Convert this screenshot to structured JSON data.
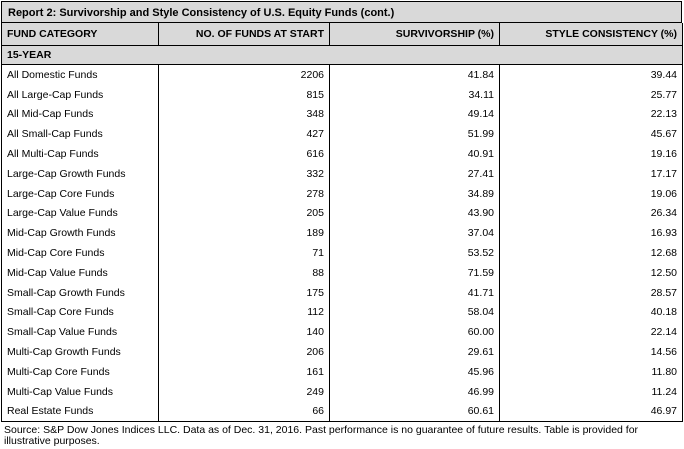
{
  "report": {
    "title": "Report 2: Survivorship and Style Consistency of U.S. Equity Funds (cont.)"
  },
  "table": {
    "headers": [
      "FUND CATEGORY",
      "NO. OF FUNDS AT START",
      "SURVIVORSHIP (%)",
      "STYLE CONSISTENCY (%)"
    ],
    "section": "15-YEAR",
    "rows": [
      [
        "All Domestic Funds",
        "2206",
        "41.84",
        "39.44"
      ],
      [
        "All Large-Cap Funds",
        "815",
        "34.11",
        "25.77"
      ],
      [
        "All Mid-Cap Funds",
        "348",
        "49.14",
        "22.13"
      ],
      [
        "All Small-Cap Funds",
        "427",
        "51.99",
        "45.67"
      ],
      [
        "All Multi-Cap Funds",
        "616",
        "40.91",
        "19.16"
      ],
      [
        "Large-Cap Growth Funds",
        "332",
        "27.41",
        "17.17"
      ],
      [
        "Large-Cap Core Funds",
        "278",
        "34.89",
        "19.06"
      ],
      [
        "Large-Cap Value Funds",
        "205",
        "43.90",
        "26.34"
      ],
      [
        "Mid-Cap Growth Funds",
        "189",
        "37.04",
        "16.93"
      ],
      [
        "Mid-Cap Core Funds",
        "71",
        "53.52",
        "12.68"
      ],
      [
        "Mid-Cap Value Funds",
        "88",
        "71.59",
        "12.50"
      ],
      [
        "Small-Cap Growth Funds",
        "175",
        "41.71",
        "28.57"
      ],
      [
        "Small-Cap Core Funds",
        "112",
        "58.04",
        "40.18"
      ],
      [
        "Small-Cap Value Funds",
        "140",
        "60.00",
        "22.14"
      ],
      [
        "Multi-Cap Growth Funds",
        "206",
        "29.61",
        "14.56"
      ],
      [
        "Multi-Cap Core Funds",
        "161",
        "45.96",
        "11.80"
      ],
      [
        "Multi-Cap Value Funds",
        "249",
        "46.99",
        "11.24"
      ],
      [
        "Real Estate Funds",
        "66",
        "60.61",
        "46.97"
      ]
    ]
  },
  "footer": {
    "source": "Source: S&P Dow Jones Indices LLC.  Data as of Dec. 31, 2016.  Past performance is no guarantee of future results.  Table is provided for illustrative purposes."
  }
}
